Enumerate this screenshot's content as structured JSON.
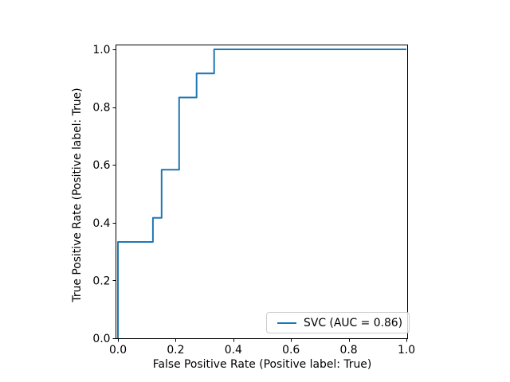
{
  "chart_data": {
    "type": "line",
    "subtype": "roc_step_curve",
    "title": "",
    "xlabel": "False Positive Rate (Positive label: True)",
    "ylabel": "True Positive Rate (Positive label: True)",
    "xlim": [
      0.0,
      1.0
    ],
    "ylim": [
      0.0,
      1.0
    ],
    "x_tick_labels": [
      "0.0",
      "0.2",
      "0.4",
      "0.6",
      "0.8",
      "1.0"
    ],
    "x_tick_values": [
      0.0,
      0.2,
      0.4,
      0.6,
      0.8,
      1.0
    ],
    "y_tick_labels": [
      "0.0",
      "0.2",
      "0.4",
      "0.6",
      "0.8",
      "1.0"
    ],
    "y_tick_values": [
      0.0,
      0.2,
      0.4,
      0.6,
      0.8,
      1.0
    ],
    "grid": false,
    "legend": {
      "position": "lower-right",
      "entries": [
        {
          "label": "SVC (AUC = 0.86)",
          "color": "#1f77b4"
        }
      ]
    },
    "series": [
      {
        "name": "SVC",
        "auc": 0.86,
        "color": "#1f77b4",
        "line_width": 2,
        "x": [
          0.0,
          0.0,
          0.1212,
          0.1212,
          0.1515,
          0.1515,
          0.2121,
          0.2121,
          0.2727,
          0.2727,
          0.3333,
          0.3333,
          1.0
        ],
        "y": [
          0.0,
          0.3333,
          0.3333,
          0.4167,
          0.4167,
          0.5833,
          0.5833,
          0.8333,
          0.8333,
          0.9167,
          0.9167,
          1.0,
          1.0
        ]
      }
    ]
  },
  "colors": {
    "background": "#ffffff",
    "spines": "#000000",
    "tick_text": "#000000",
    "legend_border": "#cccccc",
    "legend_background": "rgba(255,255,255,0.8)"
  }
}
